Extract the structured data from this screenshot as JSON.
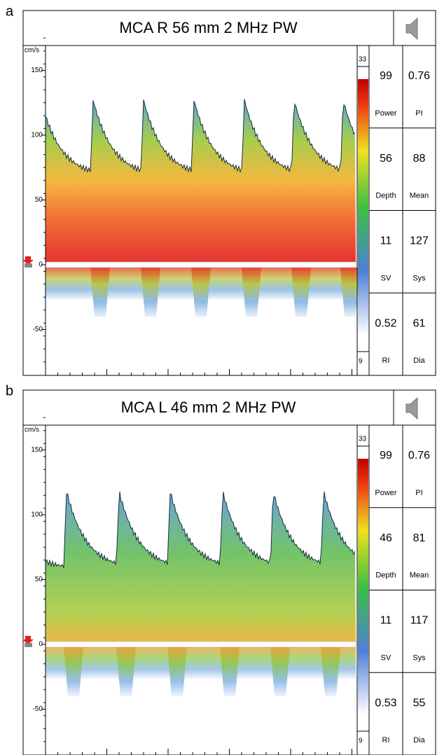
{
  "panels": [
    {
      "label": "a",
      "title": "MCA R 56 mm 2 MHz PW",
      "unit": "cm/s",
      "yticks": [
        150,
        100,
        50,
        0,
        -50
      ],
      "scale_max": "33",
      "scale_min": "9",
      "readings": [
        [
          {
            "value": "99",
            "label": "Power"
          },
          {
            "value": "0.76",
            "label": "PI"
          }
        ],
        [
          {
            "value": "56",
            "label": "Depth"
          },
          {
            "value": "88",
            "label": "Mean"
          }
        ],
        [
          {
            "value": "11",
            "label": "SV"
          },
          {
            "value": "127",
            "label": "Sys"
          }
        ],
        [
          {
            "value": "0.52",
            "label": "RI"
          },
          {
            "value": "61",
            "label": "Dia"
          }
        ]
      ]
    },
    {
      "label": "b",
      "title": "MCA L 46 mm 2 MHz PW",
      "unit": "cm/s",
      "yticks": [
        150,
        100,
        50,
        0,
        -50
      ],
      "scale_max": "33",
      "scale_min": "9",
      "readings": [
        [
          {
            "value": "99",
            "label": "Power"
          },
          {
            "value": "0.76",
            "label": "PI"
          }
        ],
        [
          {
            "value": "46",
            "label": "Depth"
          },
          {
            "value": "81",
            "label": "Mean"
          }
        ],
        [
          {
            "value": "11",
            "label": "SV"
          },
          {
            "value": "117",
            "label": "Sys"
          }
        ],
        [
          {
            "value": "0.53",
            "label": "RI"
          },
          {
            "value": "55",
            "label": "Dia"
          }
        ]
      ]
    }
  ]
}
